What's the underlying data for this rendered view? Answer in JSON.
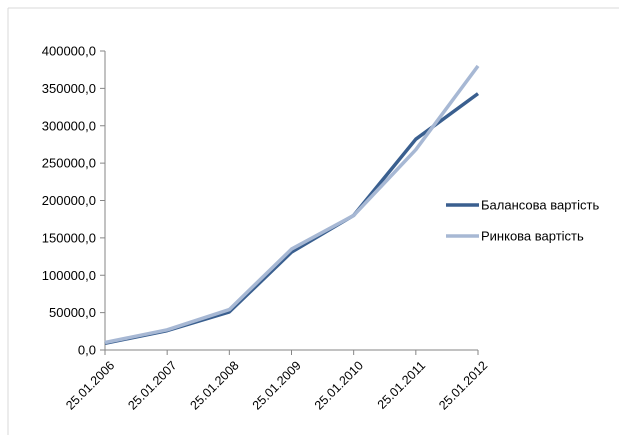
{
  "chart_data": {
    "type": "line",
    "title": "",
    "xlabel": "",
    "ylabel": "",
    "categories": [
      "25.01.2006",
      "25.01.2007",
      "25.01.2008",
      "25.01.2009",
      "25.01.2010",
      "25.01.2011",
      "25.01.2012"
    ],
    "y_ticks": [
      "0,0",
      "50000,0",
      "100000,0",
      "150000,0",
      "200000,0",
      "250000,0",
      "300000,0",
      "350000,0",
      "400000,0"
    ],
    "ylim": [
      0,
      400000
    ],
    "grid": false,
    "legend_position": "right",
    "series": [
      {
        "name": "Балансова вартість",
        "color": "#3a5f8f",
        "values": [
          9000,
          26000,
          51000,
          131000,
          180000,
          282000,
          343000
        ]
      },
      {
        "name": "Ринкова вартість",
        "color": "#a7b8d4",
        "values": [
          10000,
          27000,
          54000,
          135000,
          180000,
          268000,
          380000
        ]
      }
    ]
  }
}
